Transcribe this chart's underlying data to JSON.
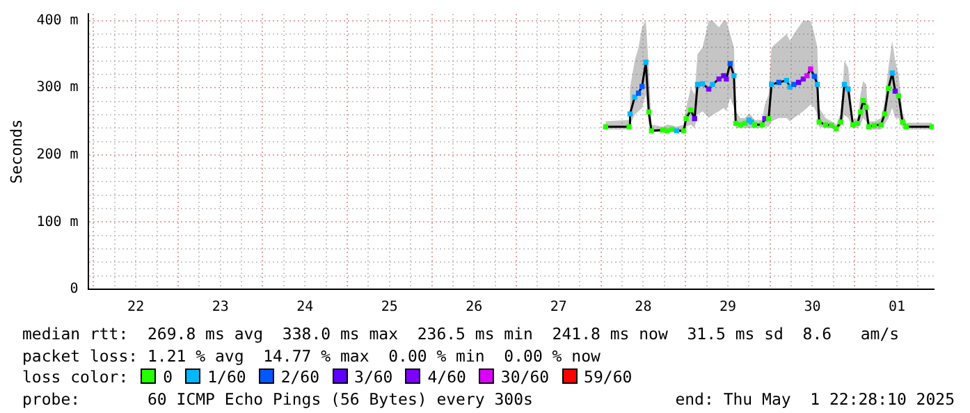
{
  "chart_data": {
    "type": "line",
    "ylabel": "Seconds",
    "x": [
      "2025-04-28T01:20",
      "2025-04-28T08:00",
      "2025-04-28T08:15",
      "2025-04-28T09:35",
      "2025-04-28T10:40",
      "2025-04-28T11:40",
      "2025-04-28T12:45",
      "2025-04-28T13:35",
      "2025-04-28T14:20",
      "2025-04-28T17:30",
      "2025-04-28T18:50",
      "2025-04-28T20:10",
      "2025-04-28T21:30",
      "2025-04-28T23:30",
      "2025-04-29T00:10",
      "2025-04-29T01:30",
      "2025-04-29T02:35",
      "2025-04-29T03:25",
      "2025-04-29T04:50",
      "2025-04-29T06:35",
      "2025-04-29T07:40",
      "2025-04-29T09:30",
      "2025-04-29T10:50",
      "2025-04-29T11:35",
      "2025-04-29T12:40",
      "2025-04-29T13:45",
      "2025-04-29T14:15",
      "2025-04-29T15:35",
      "2025-04-29T16:55",
      "2025-04-29T18:00",
      "2025-04-29T18:45",
      "2025-04-29T19:35",
      "2025-04-29T21:45",
      "2025-04-29T22:30",
      "2025-04-29T23:35",
      "2025-04-30T00:25",
      "2025-04-30T02:30",
      "2025-04-30T04:40",
      "2025-04-30T05:40",
      "2025-04-30T06:45",
      "2025-04-30T08:05",
      "2025-04-30T09:25",
      "2025-04-30T10:30",
      "2025-04-30T11:30",
      "2025-04-30T12:35",
      "2025-04-30T13:25",
      "2025-04-30T13:55",
      "2025-04-30T15:45",
      "2025-04-30T17:25",
      "2025-04-30T18:45",
      "2025-04-30T20:05",
      "2025-04-30T21:05",
      "2025-04-30T22:10",
      "2025-04-30T23:30",
      "2025-05-01T00:50",
      "2025-05-01T01:40",
      "2025-05-01T02:25",
      "2025-05-01T03:15",
      "2025-05-01T04:00",
      "2025-05-01T05:35",
      "2025-05-01T07:30",
      "2025-05-01T08:30",
      "2025-05-01T09:35",
      "2025-05-01T10:40",
      "2025-05-01T11:30",
      "2025-05-01T12:30",
      "2025-05-01T13:35",
      "2025-05-01T14:40",
      "2025-05-01T21:55"
    ],
    "series": [
      {
        "color": "#000000",
        "values": [
          242,
          242,
          261,
          286,
          292,
          302,
          338,
          264,
          236,
          237,
          236,
          238,
          236,
          236,
          254,
          267,
          254,
          305,
          306,
          298,
          305,
          313,
          318,
          313,
          336,
          318,
          247,
          245,
          247,
          252,
          249,
          245,
          245,
          254,
          254,
          305,
          308,
          311,
          301,
          305,
          308,
          313,
          318,
          328,
          317,
          305,
          249,
          245,
          244,
          239,
          249,
          305,
          298,
          245,
          247,
          264,
          281,
          271,
          242,
          244,
          245,
          261,
          299,
          322,
          295,
          288,
          249,
          242,
          242
        ],
        "colors": [
          "#26ff00",
          "#26ff00",
          "#00b8ff",
          "#00b8ff",
          "#0059ff",
          "#0059ff",
          "#00b8ff",
          "#26ff00",
          "#26ff00",
          "#26ff00",
          "#26ff00",
          "#26ff00",
          "#00b8ff",
          "#26ff00",
          "#26ff00",
          "#26ff00",
          "#5e00ff",
          "#00b8ff",
          "#00b8ff",
          "#7e00ff",
          "#00b8ff",
          "#7e00ff",
          "#5e00ff",
          "#7e00ff",
          "#0059ff",
          "#00b8ff",
          "#26ff00",
          "#26ff00",
          "#26ff00",
          "#00b8ff",
          "#00b8ff",
          "#26ff00",
          "#26ff00",
          "#7e00ff",
          "#26ff00",
          "#00b8ff",
          "#0059ff",
          "#00b8ff",
          "#00b8ff",
          "#0059ff",
          "#5e00ff",
          "#7e00ff",
          "#dd00ff",
          "#dd00ff",
          "#0059ff",
          "#00b8ff",
          "#26ff00",
          "#26ff00",
          "#26ff00",
          "#26ff00",
          "#26ff00",
          "#00b8ff",
          "#00b8ff",
          "#26ff00",
          "#26ff00",
          "#26ff00",
          "#26ff00",
          "#26ff00",
          "#26ff00",
          "#26ff00",
          "#26ff00",
          "#26ff00",
          "#26ff00",
          "#00b8ff",
          "#5e00ff",
          "#26ff00",
          "#26ff00",
          "#26ff00",
          "#26ff00"
        ],
        "lower": [
          238,
          238,
          245,
          260,
          265,
          270,
          290,
          245,
          234,
          234,
          234,
          235,
          234,
          234,
          242,
          245,
          240,
          260,
          265,
          255,
          260,
          265,
          270,
          265,
          285,
          270,
          240,
          240,
          240,
          240,
          240,
          240,
          240,
          242,
          242,
          250,
          255,
          255,
          250,
          255,
          260,
          265,
          270,
          275,
          270,
          260,
          242,
          240,
          240,
          236,
          242,
          260,
          255,
          240,
          240,
          245,
          255,
          250,
          238,
          238,
          238,
          245,
          255,
          270,
          255,
          255,
          240,
          238,
          238
        ],
        "upper": [
          250,
          252,
          300,
          340,
          360,
          390,
          400,
          330,
          245,
          242,
          245,
          244,
          242,
          245,
          270,
          300,
          290,
          350,
          360,
          400,
          400,
          390,
          400,
          400,
          380,
          360,
          265,
          255,
          255,
          262,
          258,
          252,
          252,
          275,
          290,
          360,
          370,
          380,
          370,
          380,
          390,
          400,
          400,
          400,
          380,
          360,
          270,
          255,
          250,
          245,
          262,
          340,
          330,
          252,
          255,
          290,
          310,
          305,
          250,
          250,
          255,
          280,
          330,
          370,
          340,
          320,
          262,
          248,
          248
        ]
      }
    ],
    "xlim": [
      "2025-04-21T22:28",
      "2025-05-01T22:28"
    ],
    "xticks": [
      {
        "value": "2025-04-22T00:00",
        "label": null
      },
      {
        "value": "2025-04-22T06:00",
        "label": null
      },
      {
        "value": "2025-04-22T12:00",
        "label": "22"
      },
      {
        "value": "2025-04-22T18:00",
        "label": null
      },
      {
        "value": "2025-04-23T00:00",
        "label": null
      },
      {
        "value": "2025-04-23T06:00",
        "label": null
      },
      {
        "value": "2025-04-23T12:00",
        "label": "23"
      },
      {
        "value": "2025-04-23T18:00",
        "label": null
      },
      {
        "value": "2025-04-24T00:00",
        "label": null
      },
      {
        "value": "2025-04-24T06:00",
        "label": null
      },
      {
        "value": "2025-04-24T12:00",
        "label": "24"
      },
      {
        "value": "2025-04-24T18:00",
        "label": null
      },
      {
        "value": "2025-04-25T00:00",
        "label": null
      },
      {
        "value": "2025-04-25T06:00",
        "label": null
      },
      {
        "value": "2025-04-25T12:00",
        "label": "25"
      },
      {
        "value": "2025-04-25T18:00",
        "label": null
      },
      {
        "value": "2025-04-26T00:00",
        "label": null
      },
      {
        "value": "2025-04-26T06:00",
        "label": null
      },
      {
        "value": "2025-04-26T12:00",
        "label": "26"
      },
      {
        "value": "2025-04-26T18:00",
        "label": null
      },
      {
        "value": "2025-04-27T00:00",
        "label": null
      },
      {
        "value": "2025-04-27T06:00",
        "label": null
      },
      {
        "value": "2025-04-27T12:00",
        "label": "27"
      },
      {
        "value": "2025-04-27T18:00",
        "label": null
      },
      {
        "value": "2025-04-28T00:00",
        "label": null
      },
      {
        "value": "2025-04-28T06:00",
        "label": null
      },
      {
        "value": "2025-04-28T12:00",
        "label": "28"
      },
      {
        "value": "2025-04-28T18:00",
        "label": null
      },
      {
        "value": "2025-04-29T00:00",
        "label": null
      },
      {
        "value": "2025-04-29T06:00",
        "label": null
      },
      {
        "value": "2025-04-29T12:00",
        "label": "29"
      },
      {
        "value": "2025-04-29T18:00",
        "label": null
      },
      {
        "value": "2025-04-30T00:00",
        "label": null
      },
      {
        "value": "2025-04-30T06:00",
        "label": null
      },
      {
        "value": "2025-04-30T12:00",
        "label": "30"
      },
      {
        "value": "2025-04-30T18:00",
        "label": null
      },
      {
        "value": "2025-05-01T00:00",
        "label": null
      },
      {
        "value": "2025-05-01T06:00",
        "label": null
      },
      {
        "value": "2025-05-01T12:00",
        "label": "01"
      },
      {
        "value": "2025-05-01T18:00",
        "label": null
      }
    ],
    "ylim": [
      0,
      410
    ],
    "yticks": [
      0,
      {
        "value": 20,
        "label": null
      },
      {
        "value": 40,
        "label": null
      },
      {
        "value": 60,
        "label": null
      },
      {
        "value": 80,
        "label": null
      },
      {
        "value": 100,
        "label": "100 m"
      },
      {
        "value": 120,
        "label": null
      },
      {
        "value": 140,
        "label": null
      },
      {
        "value": 160,
        "label": null
      },
      {
        "value": 180,
        "label": null
      },
      {
        "value": 200,
        "label": "200 m"
      },
      {
        "value": 220,
        "label": null
      },
      {
        "value": 240,
        "label": null
      },
      {
        "value": 260,
        "label": null
      },
      {
        "value": 280,
        "label": null
      },
      {
        "value": 300,
        "label": "300 m"
      },
      {
        "value": 320,
        "label": null
      },
      {
        "value": 340,
        "label": null
      },
      {
        "value": 360,
        "label": null
      },
      {
        "value": 380,
        "label": null
      },
      {
        "value": 400,
        "label": "400 m"
      }
    ],
    "grid": true,
    "legend": false,
    "marker": "square",
    "line_style": "solid",
    "annotations": [
      "median rtt:  269.8 ms avg  338.0 ms max  236.5 ms min  241.8 ms now  31.5 ms sd  8.6   am/s",
      "packet loss: 1.21 % avg  14.77 % max  0.00 % min  0.00 % now",
      "loss color:",
      "0",
      "1/60",
      "2/60",
      "3/60",
      "4/60",
      "30/60",
      "59/60",
      "probe:       60 ICMP Echo Pings (56 Bytes) every 300s",
      "end: Thu May  1 22:28:10 2025"
    ]
  }
}
